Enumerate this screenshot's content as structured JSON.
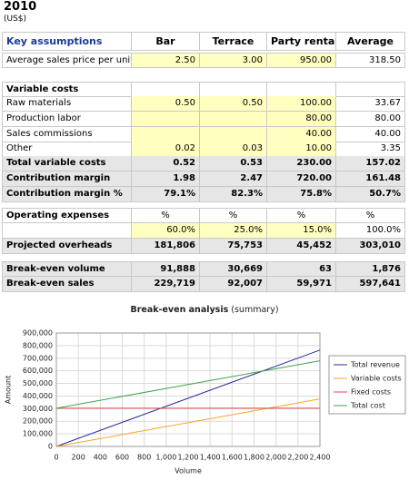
{
  "header": {
    "title": "2010",
    "subtitle": "(US$)"
  },
  "table": {
    "columns": [
      "Key assumptions",
      "Bar",
      "Terrace",
      "Party rentals",
      "Average"
    ],
    "rows": [
      [
        "Average sales price per unit",
        "2.50",
        "3.00",
        "950.00",
        "318.50"
      ],
      [
        "Variable costs",
        null,
        null,
        null,
        null
      ],
      [
        "Raw materials",
        "0.50",
        "0.50",
        "100.00",
        "33.67"
      ],
      [
        "Production labor",
        null,
        null,
        "80.00",
        "80.00"
      ],
      [
        "Sales commissions",
        null,
        null,
        "40.00",
        "40.00"
      ],
      [
        "Other",
        "0.02",
        "0.03",
        "10.00",
        "3.35"
      ],
      [
        "Total variable costs",
        "0.52",
        "0.53",
        "230.00",
        "157.02"
      ],
      [
        "Contribution margin",
        "1.98",
        "2.47",
        "720.00",
        "161.48"
      ],
      [
        "Contribution margin %",
        "79.1%",
        "82.3%",
        "75.8%",
        "50.7%"
      ],
      [
        "Operating expenses",
        "%",
        "%",
        "%",
        "%"
      ],
      [
        null,
        "60.0%",
        "25.0%",
        "15.0%",
        "100.0%"
      ],
      [
        "Projected overheads",
        "181,806",
        "75,753",
        "45,452",
        "303,010"
      ],
      [
        "Break-even volume",
        "91,888",
        "30,669",
        "63",
        "1,876"
      ],
      [
        "Break-even sales",
        "229,719",
        "92,007",
        "59,971",
        "597,641"
      ]
    ]
  },
  "chart_data": {
    "type": "line",
    "title": "Break-even analysis",
    "subtitle": "(summary)",
    "xlabel": "Volume",
    "ylabel": "Amount",
    "x": [
      0,
      2400
    ],
    "series": [
      {
        "name": "Total revenue",
        "color": "#2b2b9e",
        "values": [
          0,
          764400
        ]
      },
      {
        "name": "Variable costs",
        "color": "#f5a623",
        "values": [
          0,
          376848
        ]
      },
      {
        "name": "Fixed costs",
        "color": "#e8404a",
        "values": [
          303010,
          303010
        ]
      },
      {
        "name": "Total cost",
        "color": "#3fa34d",
        "values": [
          303010,
          679858
        ]
      }
    ],
    "xlim": [
      0,
      2400
    ],
    "xticks": [
      0,
      200,
      400,
      600,
      800,
      {
        "value": 1000,
        "label": "1,000"
      },
      {
        "value": 1200,
        "label": "1,200"
      },
      {
        "value": 1400,
        "label": "1,400"
      },
      {
        "value": 1600,
        "label": "1,600"
      },
      {
        "value": 1800,
        "label": "1,800"
      },
      {
        "value": 2000,
        "label": "2,000"
      },
      {
        "value": 2200,
        "label": "2,200"
      },
      {
        "value": 2400,
        "label": "2,400"
      }
    ],
    "ylim": [
      0,
      900000
    ],
    "yticks": [
      0,
      {
        "value": 100000,
        "label": "100,000"
      },
      {
        "value": 200000,
        "label": "200,000"
      },
      {
        "value": 300000,
        "label": "300,000"
      },
      {
        "value": 400000,
        "label": "400,000"
      },
      {
        "value": 500000,
        "label": "500,000"
      },
      {
        "value": 600000,
        "label": "600,000"
      },
      {
        "value": 700000,
        "label": "700,000"
      },
      {
        "value": 800000,
        "label": "800,000"
      },
      {
        "value": 900000,
        "label": "900,000"
      }
    ],
    "grid": true,
    "legend": "right"
  }
}
